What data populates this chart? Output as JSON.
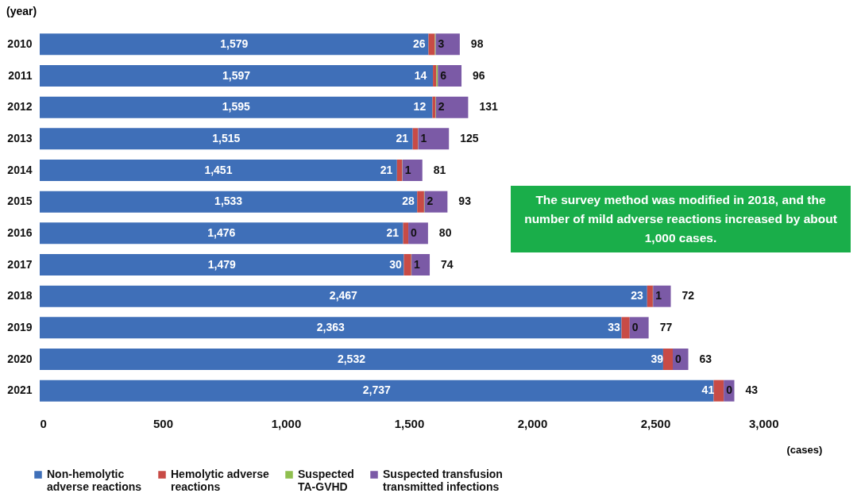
{
  "chart_data": {
    "type": "bar",
    "orientation": "horizontal",
    "stacked": true,
    "categories": [
      "2010",
      "2011",
      "2012",
      "2013",
      "2014",
      "2015",
      "2016",
      "2017",
      "2018",
      "2019",
      "2020",
      "2021"
    ],
    "series": [
      {
        "name": "Non-hemolytic adverse reactions",
        "color": "#3f6fb8",
        "values": [
          1579,
          1597,
          1595,
          1515,
          1451,
          1533,
          1476,
          1479,
          2467,
          2363,
          2532,
          2737
        ],
        "value_labels": [
          "1,579",
          "1,597",
          "1,595",
          "1,515",
          "1,451",
          "1,533",
          "1,476",
          "1,479",
          "2,467",
          "2,363",
          "2,532",
          "2,737"
        ]
      },
      {
        "name": "Hemolytic adverse reactions",
        "color": "#c84b46",
        "values": [
          26,
          14,
          12,
          21,
          21,
          28,
          21,
          30,
          23,
          33,
          39,
          41
        ],
        "value_labels": [
          "26",
          "14",
          "12",
          "21",
          "21",
          "28",
          "21",
          "30",
          "23",
          "33",
          "39",
          "41"
        ]
      },
      {
        "name": "Suspected TA-GVHD",
        "color": "#8fbf4f",
        "values": [
          3,
          6,
          2,
          1,
          1,
          2,
          0,
          1,
          1,
          0,
          0,
          0
        ],
        "value_labels": [
          "3",
          "6",
          "2",
          "1",
          "1",
          "2",
          "0",
          "1",
          "1",
          "0",
          "0",
          "0"
        ]
      },
      {
        "name": "Suspected transfusion transmitted infections",
        "color": "#7b5aa6",
        "values": [
          98,
          96,
          131,
          125,
          81,
          93,
          80,
          74,
          72,
          77,
          63,
          43
        ],
        "value_labels": [
          "98",
          "96",
          "131",
          "125",
          "81",
          "93",
          "80",
          "74",
          "72",
          "77",
          "63",
          "43"
        ]
      }
    ],
    "xlim": [
      0,
      3000
    ],
    "xticks": [
      0,
      500,
      {
        "value": 1000,
        "label": "1,000"
      },
      {
        "value": 1500,
        "label": "1,500"
      },
      {
        "value": 2000,
        "label": "2,000"
      },
      {
        "value": 2500,
        "label": "2,500"
      },
      {
        "value": 3000,
        "label": "3,000"
      }
    ],
    "xlabel": "(cases)",
    "ylabel": "(year)",
    "legend": "bottom",
    "grid": false,
    "annotations": [
      "The survey method was modified in 2018, and the number of mild adverse reactions increased by about 1,000 cases."
    ]
  }
}
